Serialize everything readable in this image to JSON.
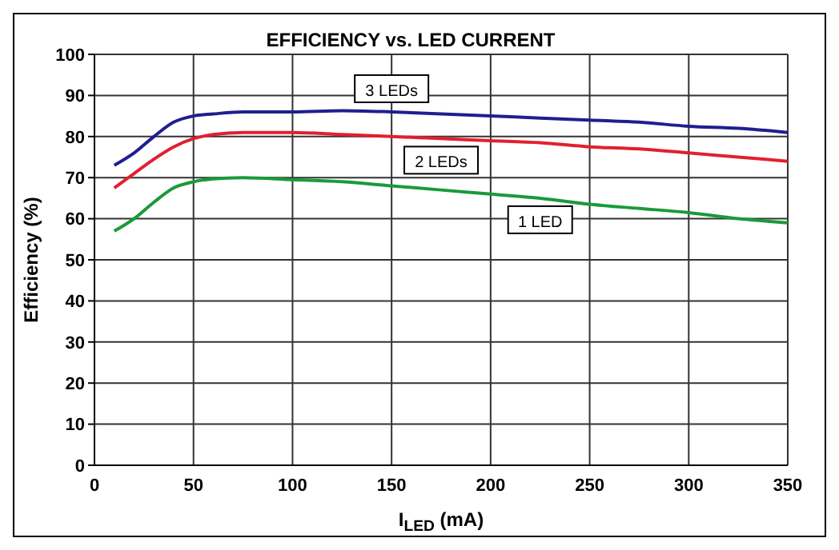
{
  "chart_data": {
    "type": "line",
    "title": "EFFICIENCY vs. LED CURRENT",
    "xlabel": "I$_{LED}$ (mA)",
    "ylabel": "Efficiency (%)",
    "x": [
      10,
      20,
      30,
      40,
      50,
      60,
      75,
      100,
      125,
      150,
      175,
      200,
      225,
      250,
      275,
      300,
      325,
      350
    ],
    "series": [
      {
        "name": "1 LED",
        "color": "#1a9a3a",
        "values": [
          57,
          60,
          64,
          67.5,
          69,
          69.7,
          70,
          69.5,
          69,
          68,
          67,
          66,
          65,
          63.5,
          62.5,
          61.5,
          60,
          59
        ]
      },
      {
        "name": "2 LEDs",
        "color": "#e0202f",
        "values": [
          67.5,
          71,
          74.5,
          77.5,
          79.5,
          80.5,
          81,
          81,
          80.5,
          80,
          79.5,
          79,
          78.5,
          77.5,
          77,
          76,
          75,
          74
        ]
      },
      {
        "name": "3 LEDs",
        "color": "#1f1f8f",
        "values": [
          73,
          76,
          80,
          83.5,
          85,
          85.5,
          86,
          86,
          86.3,
          86,
          85.5,
          85,
          84.5,
          84,
          83.5,
          82.5,
          82,
          81
        ]
      }
    ],
    "xlim": [
      0,
      350
    ],
    "xticks": [
      0,
      50,
      100,
      150,
      200,
      250,
      300,
      350
    ],
    "ylim": [
      0,
      100
    ],
    "yticks": [
      0,
      10,
      20,
      30,
      40,
      50,
      60,
      70,
      80,
      90,
      100
    ],
    "grid": true,
    "legend": false,
    "marker": "none",
    "line_style": "solid"
  }
}
